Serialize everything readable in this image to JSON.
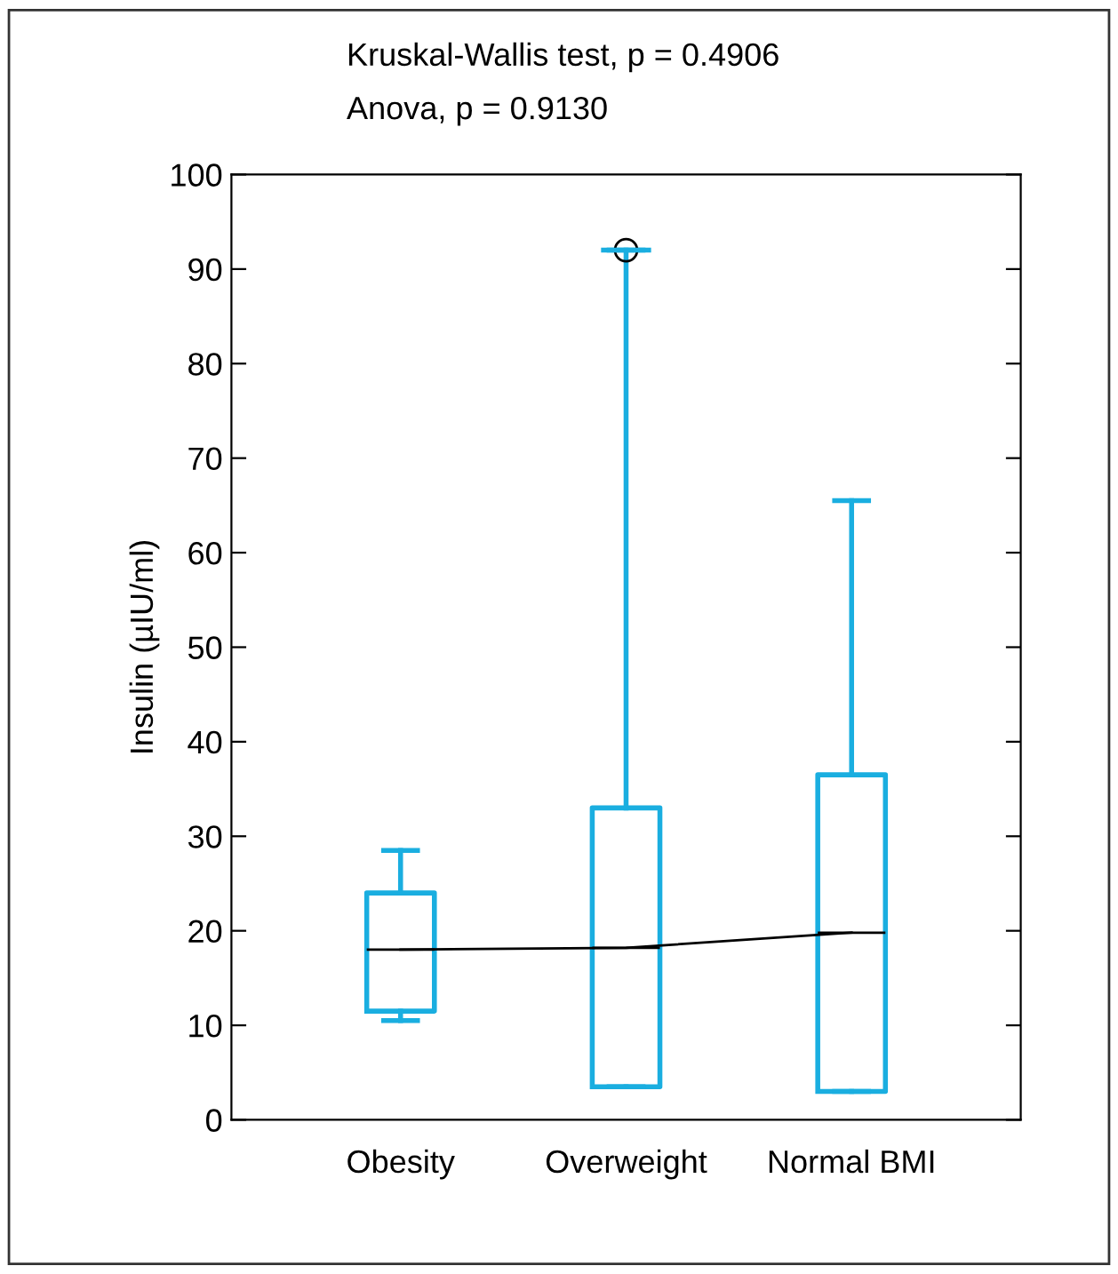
{
  "chart_data": {
    "type": "box",
    "ylabel": "Insulin (µIU/ml)",
    "annotations": [
      "Kruskal-Wallis test, p = 0.4906",
      "Anova, p = 0.9130"
    ],
    "categories": [
      "Obesity",
      "Overweight",
      "Normal BMI"
    ],
    "series": [
      {
        "color": "#1aaee0",
        "boxes": [
          {
            "low": 10.5,
            "q1": 11.5,
            "median": 18,
            "q3": 24,
            "high": 28.5
          },
          {
            "low": 3.5,
            "q1": 3.5,
            "median": 18.2,
            "q3": 33,
            "high": 92,
            "outliers": [
              92
            ]
          },
          {
            "low": 3,
            "q1": 3,
            "median": 19.8,
            "q3": 36.5,
            "high": 65.5
          }
        ]
      },
      {
        "type": "line",
        "color": "#000000",
        "x": [
          "Obesity",
          "Overweight",
          "Normal BMI"
        ],
        "values": [
          18,
          18.2,
          19.8
        ]
      }
    ],
    "ylim": [
      0,
      100
    ],
    "yticks": [
      0,
      10,
      20,
      30,
      40,
      50,
      60,
      70,
      80,
      90,
      100
    ],
    "grid": false,
    "legend": false
  }
}
